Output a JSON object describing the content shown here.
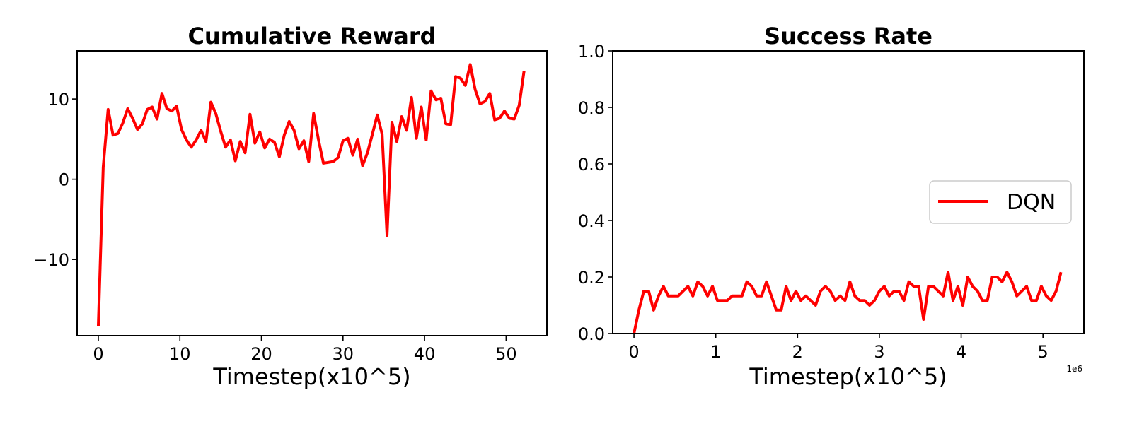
{
  "chart_data": [
    {
      "type": "line",
      "title": "Cumulative Reward",
      "xlabel": "Timestep(x10^5)",
      "ylabel": "",
      "xlim": [
        -2.6,
        55
      ],
      "ylim": [
        -19.5,
        16
      ],
      "xticks": [
        0,
        10,
        20,
        30,
        40,
        50
      ],
      "yticks": [
        -10,
        0,
        10
      ],
      "ytick_labels": [
        "−10",
        "0",
        "10"
      ],
      "grid": false,
      "series": [
        {
          "color": "#ff0000",
          "x": [
            0,
            0.6,
            1.2,
            1.8,
            2.4,
            3.0,
            3.6,
            4.2,
            4.8,
            5.4,
            6.0,
            6.6,
            7.2,
            7.8,
            8.4,
            9.0,
            9.6,
            10.2,
            10.8,
            11.4,
            12.0,
            12.6,
            13.2,
            13.8,
            14.4,
            15.0,
            15.6,
            16.2,
            16.8,
            17.4,
            18.0,
            18.6,
            19.2,
            19.8,
            20.4,
            21.0,
            21.6,
            22.2,
            22.8,
            23.4,
            24.0,
            24.6,
            25.2,
            25.8,
            26.4,
            27.0,
            27.6,
            28.2,
            28.8,
            29.4,
            30.0,
            30.6,
            31.2,
            31.8,
            32.4,
            33.0,
            33.6,
            34.2,
            34.8,
            35.4,
            36.0,
            36.6,
            37.2,
            37.8,
            38.4,
            39.0,
            39.6,
            40.2,
            40.8,
            41.4,
            42.0,
            42.6,
            43.2,
            43.8,
            44.4,
            45.0,
            45.6,
            46.2,
            46.8,
            47.4,
            48.0,
            48.6,
            49.2,
            49.8,
            50.4,
            51.0,
            51.6,
            52.2
          ],
          "values": [
            -18.3,
            1.5,
            8.7,
            5.5,
            5.7,
            7.0,
            8.8,
            7.6,
            6.2,
            6.9,
            8.7,
            9.0,
            7.5,
            10.7,
            8.8,
            8.5,
            9.1,
            6.2,
            4.9,
            4.0,
            4.9,
            6.1,
            4.7,
            9.6,
            8.2,
            6.0,
            4.0,
            4.9,
            2.3,
            4.7,
            3.3,
            8.1,
            4.5,
            5.9,
            3.9,
            5.0,
            4.6,
            2.8,
            5.5,
            7.2,
            6.1,
            3.8,
            4.8,
            2.2,
            8.2,
            4.9,
            2.0,
            2.1,
            2.2,
            2.7,
            4.8,
            5.1,
            3.0,
            5.0,
            1.7,
            3.3,
            5.6,
            8.0,
            5.6,
            -7.0,
            7.1,
            4.7,
            7.8,
            6.1,
            10.2,
            5.1,
            9.0,
            4.9,
            11.0,
            9.9,
            10.1,
            6.9,
            6.8,
            12.8,
            12.6,
            11.7,
            14.3,
            11.2,
            9.4,
            9.7,
            10.7,
            7.4,
            7.6,
            8.5,
            7.6,
            7.5,
            9.2,
            13.5
          ]
        }
      ]
    },
    {
      "type": "line",
      "title": "Success Rate",
      "xlabel": "Timestep(x10^5)",
      "ylabel": "",
      "x_offset_label": "1e6",
      "xlim": [
        -0.26,
        5.5
      ],
      "ylim": [
        0.0,
        1.0
      ],
      "xticks": [
        0,
        1,
        2,
        3,
        4,
        5
      ],
      "yticks": [
        0.0,
        0.2,
        0.4,
        0.6,
        0.8,
        1.0
      ],
      "ytick_labels": [
        "0.0",
        "0.2",
        "0.4",
        "0.6",
        "0.8",
        "1.0"
      ],
      "grid": false,
      "legend": {
        "placement": "center-right",
        "entries": [
          "DQN"
        ]
      },
      "series": [
        {
          "name": "DQN",
          "color": "#ff0000",
          "x": [
            0,
            0.06,
            0.12,
            0.18,
            0.24,
            0.3,
            0.36,
            0.42,
            0.48,
            0.54,
            0.6,
            0.66,
            0.72,
            0.78,
            0.84,
            0.9,
            0.96,
            1.02,
            1.08,
            1.14,
            1.2,
            1.26,
            1.32,
            1.38,
            1.44,
            1.5,
            1.56,
            1.62,
            1.68,
            1.74,
            1.8,
            1.86,
            1.92,
            1.98,
            2.04,
            2.1,
            2.16,
            2.22,
            2.28,
            2.34,
            2.4,
            2.46,
            2.52,
            2.58,
            2.64,
            2.7,
            2.76,
            2.82,
            2.88,
            2.94,
            3.0,
            3.06,
            3.12,
            3.18,
            3.24,
            3.3,
            3.36,
            3.42,
            3.48,
            3.54,
            3.6,
            3.66,
            3.72,
            3.78,
            3.84,
            3.9,
            3.96,
            4.02,
            4.08,
            4.14,
            4.2,
            4.26,
            4.32,
            4.38,
            4.44,
            4.5,
            4.56,
            4.62,
            4.68,
            4.74,
            4.8,
            4.86,
            4.92,
            4.98,
            5.04,
            5.1,
            5.16,
            5.22
          ],
          "values": [
            0.0,
            0.083,
            0.15,
            0.15,
            0.083,
            0.133,
            0.167,
            0.133,
            0.133,
            0.133,
            0.15,
            0.167,
            0.133,
            0.183,
            0.167,
            0.133,
            0.167,
            0.117,
            0.117,
            0.117,
            0.133,
            0.133,
            0.133,
            0.183,
            0.167,
            0.133,
            0.133,
            0.183,
            0.133,
            0.083,
            0.083,
            0.167,
            0.117,
            0.15,
            0.117,
            0.133,
            0.117,
            0.1,
            0.15,
            0.167,
            0.15,
            0.117,
            0.133,
            0.117,
            0.183,
            0.133,
            0.117,
            0.117,
            0.1,
            0.117,
            0.15,
            0.167,
            0.133,
            0.15,
            0.15,
            0.117,
            0.183,
            0.167,
            0.167,
            0.05,
            0.167,
            0.167,
            0.15,
            0.133,
            0.217,
            0.117,
            0.167,
            0.1,
            0.2,
            0.167,
            0.15,
            0.117,
            0.117,
            0.2,
            0.2,
            0.183,
            0.217,
            0.183,
            0.133,
            0.15,
            0.167,
            0.117,
            0.117,
            0.167,
            0.133,
            0.117,
            0.15,
            0.217
          ]
        }
      ]
    }
  ]
}
